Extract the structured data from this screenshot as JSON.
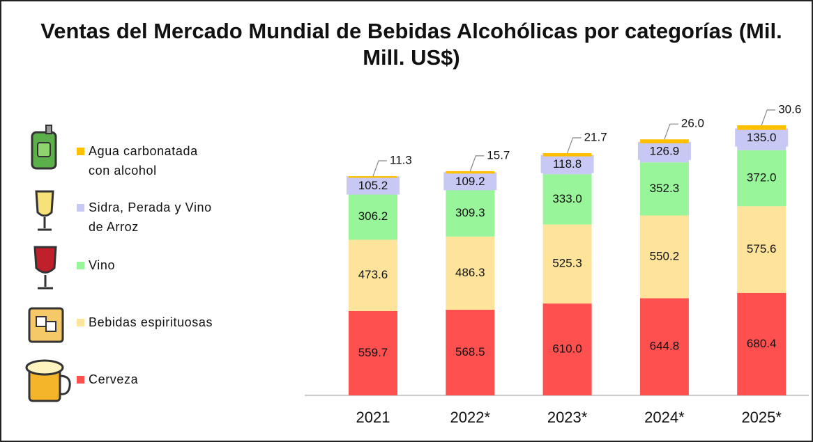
{
  "chart_data": {
    "type": "stacked-bar",
    "title": "Ventas del Mercado Mundial de Bebidas Alcohólicas por categorías (Mil. Mill. US$)",
    "categories": [
      "2021",
      "2022*",
      "2023*",
      "2024*",
      "2025*"
    ],
    "series": [
      {
        "name": "Cerveza",
        "color": "#ff5050",
        "values": [
          559.7,
          568.5,
          610.0,
          644.8,
          680.4
        ],
        "value_labels": [
          "559.7",
          "568.5",
          "610.0",
          "644.8",
          "680.4"
        ]
      },
      {
        "name": "Bebidas espirituosas",
        "color": "#fde49a",
        "values": [
          473.6,
          486.3,
          525.3,
          550.2,
          575.6
        ],
        "value_labels": [
          "473.6",
          "486.3",
          "525.3",
          "550.2",
          "575.6"
        ]
      },
      {
        "name": "Vino",
        "color": "#98f59a",
        "values": [
          306.2,
          309.3,
          333.0,
          352.3,
          372.0
        ],
        "value_labels": [
          "306.2",
          "309.3",
          "333.0",
          "352.3",
          "372.0"
        ]
      },
      {
        "name": "Sidra, Perada y Vino de Arroz",
        "color": "#c8c8f5",
        "values": [
          105.2,
          109.2,
          118.8,
          126.9,
          135.0
        ],
        "value_labels": [
          "105.2",
          "109.2",
          "118.8",
          "126.9",
          "135.0"
        ]
      },
      {
        "name": "Agua carbonatada con alcohol",
        "color": "#ffc000",
        "values": [
          11.3,
          15.7,
          21.7,
          26.0,
          30.6
        ],
        "value_labels": [
          "11.3",
          "15.7",
          "21.7",
          "26.0",
          "30.6"
        ]
      }
    ]
  }
}
